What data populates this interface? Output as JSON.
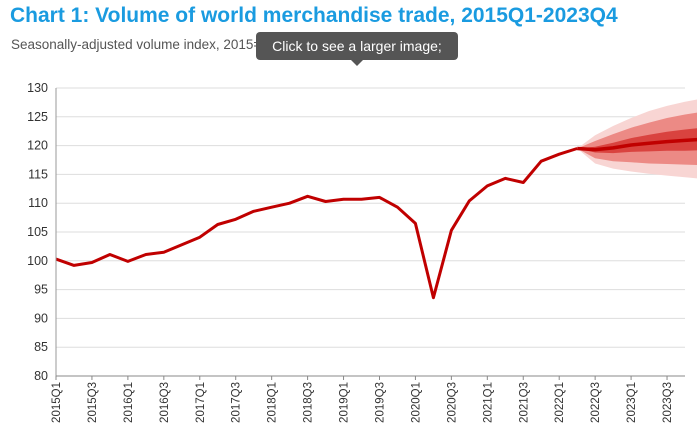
{
  "title": "Chart 1: Volume of world merchandise trade, 2015Q1-2023Q4",
  "subtitle": "Seasonally-adjusted volume index, 2015=100",
  "tooltip": {
    "text": "Click to see a larger image;"
  },
  "colors": {
    "title": "#1a9be0",
    "line": "#c00000",
    "fan_inner": "#d9433f",
    "fan_mid": "#ec8a85",
    "fan_outer": "#f8d5d3",
    "grid": "#dddddd"
  },
  "chart_data": {
    "type": "line",
    "title": "Chart 1: Volume of world merchandise trade, 2015Q1-2023Q4",
    "subtitle": "Seasonally-adjusted volume index, 2015=100",
    "xlabel": "",
    "ylabel": "",
    "ylim": [
      80,
      130
    ],
    "yticks": [
      80,
      85,
      90,
      95,
      100,
      105,
      110,
      115,
      120,
      125,
      130
    ],
    "grid": true,
    "x": [
      "2015Q1",
      "2015Q2",
      "2015Q3",
      "2015Q4",
      "2016Q1",
      "2016Q2",
      "2016Q3",
      "2016Q4",
      "2017Q1",
      "2017Q2",
      "2017Q3",
      "2017Q4",
      "2018Q1",
      "2018Q2",
      "2018Q3",
      "2018Q4",
      "2019Q1",
      "2019Q2",
      "2019Q3",
      "2019Q4",
      "2020Q1",
      "2020Q2",
      "2020Q3",
      "2020Q4",
      "2021Q1",
      "2021Q2",
      "2021Q3",
      "2021Q4",
      "2022Q1",
      "2022Q2",
      "2022Q3",
      "2022Q4",
      "2023Q1",
      "2023Q2",
      "2023Q3",
      "2023Q4"
    ],
    "xtick_labels": [
      "2015Q1",
      "2015Q3",
      "2016Q1",
      "2016Q3",
      "2017Q1",
      "2017Q3",
      "2018Q1",
      "2018Q3",
      "2019Q1",
      "2019Q3",
      "2020Q1",
      "2020Q3",
      "2021Q1",
      "2021Q3",
      "2022Q1",
      "2022Q3",
      "2023Q1",
      "2023Q3"
    ],
    "actual": [
      100.3,
      99.2,
      99.7,
      101.1,
      99.9,
      101.1,
      101.5,
      102.8,
      104.1,
      106.3,
      107.2,
      108.6,
      109.3,
      110.0,
      111.2,
      110.3,
      110.7,
      110.7,
      111.0,
      109.3,
      106.5,
      93.6,
      105.3,
      110.4,
      113.0,
      114.3,
      113.6,
      117.3,
      118.5,
      119.5
    ],
    "forecast": {
      "start": "2022Q2",
      "central": [
        119.5,
        119.3,
        119.6,
        120.1,
        120.4,
        120.7,
        120.9,
        121.1
      ],
      "band_inner": {
        "low": [
          119.5,
          118.8,
          118.7,
          118.9,
          119.0,
          119.1,
          119.1,
          119.2
        ],
        "high": [
          119.5,
          119.8,
          120.5,
          121.3,
          121.9,
          122.4,
          122.8,
          123.1
        ]
      },
      "band_mid": {
        "low": [
          119.5,
          117.8,
          117.3,
          117.1,
          116.9,
          116.8,
          116.7,
          116.6
        ],
        "high": [
          119.5,
          120.8,
          122.0,
          123.1,
          124.0,
          124.8,
          125.4,
          125.9
        ]
      },
      "band_outer": {
        "low": [
          119.5,
          116.9,
          116.0,
          115.5,
          115.1,
          114.8,
          114.5,
          114.2
        ],
        "high": [
          119.5,
          121.8,
          123.4,
          124.8,
          126.0,
          126.9,
          127.6,
          128.2
        ]
      }
    }
  }
}
